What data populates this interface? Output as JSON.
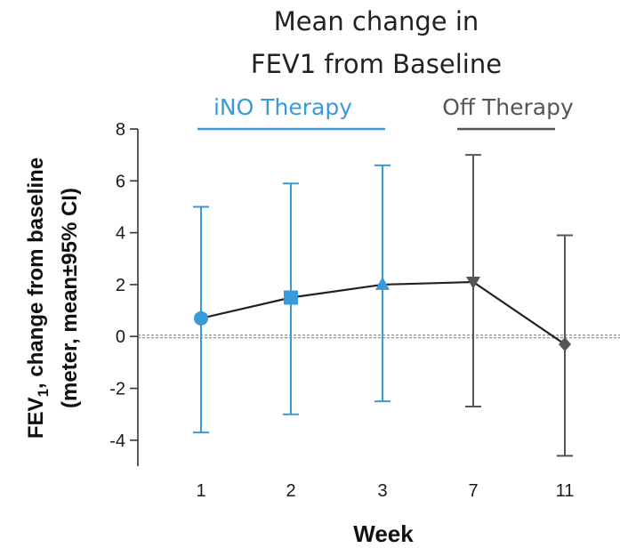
{
  "chart_data": {
    "type": "line",
    "title_line1": "Mean change in",
    "title_line2": "FEV1 from Baseline",
    "xlabel": "Week",
    "ylabel_line1_main": "FEV",
    "ylabel_line1_sub": "1",
    "ylabel_line1_rest": ", change from baseline",
    "ylabel_line2": "(meter, mean±95% CI)",
    "categories": [
      "1",
      "2",
      "3",
      "7",
      "11"
    ],
    "y_ticks": [
      "8",
      "6",
      "4",
      "2",
      "0",
      "-2",
      "-4"
    ],
    "ylim": [
      -5,
      8
    ],
    "phases": [
      {
        "label": "iNO Therapy",
        "color": "#3a9ad9"
      },
      {
        "label": "Off Therapy",
        "color": "#555555"
      }
    ],
    "series": [
      {
        "values": [
          0.7,
          1.5,
          2.0,
          2.1,
          -0.3
        ],
        "ci_low": [
          -3.7,
          -3.0,
          -2.5,
          -2.7,
          -4.6
        ],
        "ci_high": [
          5.0,
          5.9,
          6.6,
          7.0,
          3.9
        ],
        "markers": [
          "circle",
          "square",
          "triangle-up",
          "triangle-down",
          "diamond"
        ],
        "point_colors": [
          "#3a9ad9",
          "#3a9ad9",
          "#3a9ad9",
          "#555555",
          "#555555"
        ]
      }
    ],
    "reference_line_y": 0,
    "line_color": "#222222"
  }
}
